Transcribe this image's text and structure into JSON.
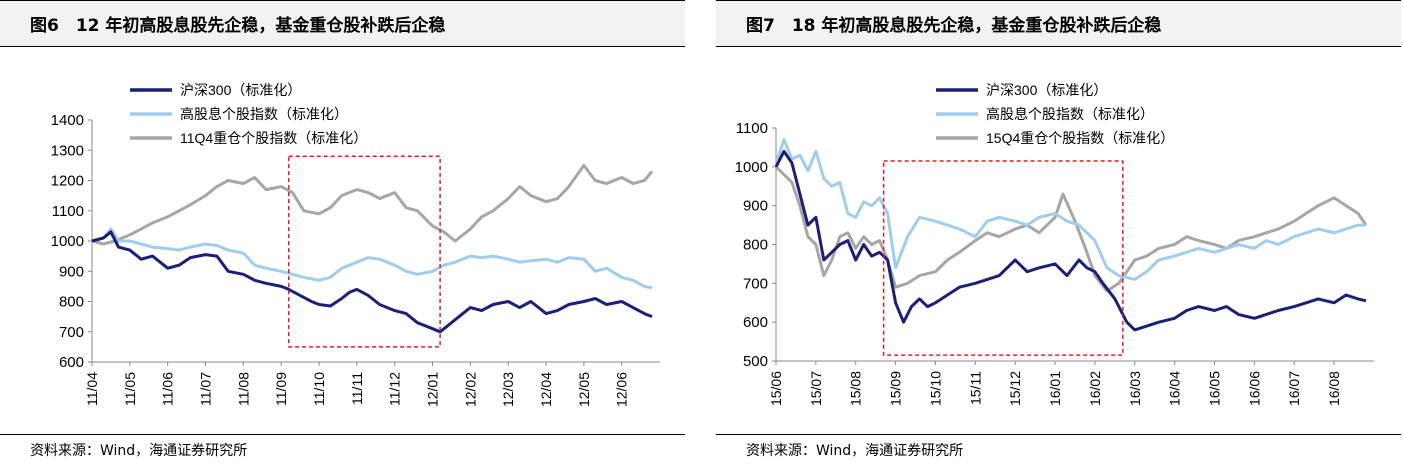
{
  "panels": [
    {
      "title": "图6　12 年初高股息股先企稳，基金重仓股补跌后企稳",
      "source": "资料来源：Wind，海通证券研究所",
      "chart_data": {
        "type": "line",
        "title": "图6　12 年初高股息股先企稳，基金重仓股补跌后企稳",
        "xlabel": "",
        "ylabel": "",
        "ylim": [
          600,
          1400
        ],
        "yticks": [
          600,
          700,
          800,
          900,
          1000,
          1100,
          1200,
          1300,
          1400
        ],
        "xticks": [
          "11/04",
          "11/05",
          "11/06",
          "11/07",
          "11/08",
          "11/09",
          "11/10",
          "11/11",
          "11/12",
          "12/01",
          "12/02",
          "12/03",
          "12/04",
          "12/05",
          "12/06"
        ],
        "xrange": [
          0,
          14.8
        ],
        "highlight": {
          "x0": 5.2,
          "x1": 9.2,
          "y0": 650,
          "y1": 1280
        },
        "series": [
          {
            "name": "沪深300（标准化）",
            "color": "#1a1f7a",
            "x": [
              0,
              0.3,
              0.5,
              0.7,
              1,
              1.3,
              1.6,
              2,
              2.3,
              2.6,
              3,
              3.3,
              3.6,
              4,
              4.3,
              4.6,
              5,
              5.2,
              5.5,
              5.8,
              6,
              6.3,
              6.6,
              6.8,
              7,
              7.3,
              7.6,
              8,
              8.3,
              8.6,
              8.8,
              9,
              9.2,
              9.5,
              9.8,
              10,
              10.3,
              10.6,
              11,
              11.3,
              11.6,
              12,
              12.3,
              12.6,
              13,
              13.3,
              13.6,
              14,
              14.3,
              14.6,
              14.8
            ],
            "values": [
              1000,
              1010,
              1030,
              980,
              970,
              940,
              950,
              910,
              920,
              945,
              955,
              950,
              900,
              890,
              870,
              860,
              850,
              840,
              820,
              800,
              790,
              785,
              810,
              830,
              840,
              820,
              790,
              770,
              760,
              730,
              720,
              710,
              700,
              730,
              760,
              780,
              770,
              790,
              800,
              780,
              800,
              760,
              770,
              790,
              800,
              810,
              790,
              800,
              780,
              760,
              750
            ]
          },
          {
            "name": "高股息个股指数（标准化）",
            "color": "#9fcdee",
            "x": [
              0,
              0.3,
              0.5,
              0.7,
              1,
              1.3,
              1.6,
              2,
              2.3,
              2.6,
              3,
              3.3,
              3.6,
              4,
              4.3,
              4.6,
              5,
              5.3,
              5.6,
              6,
              6.3,
              6.6,
              7,
              7.3,
              7.6,
              8,
              8.3,
              8.6,
              9,
              9.3,
              9.6,
              10,
              10.3,
              10.6,
              11,
              11.3,
              11.6,
              12,
              12.3,
              12.6,
              13,
              13.3,
              13.6,
              14,
              14.3,
              14.6,
              14.8
            ],
            "values": [
              1000,
              1010,
              1040,
              1000,
              1000,
              990,
              980,
              975,
              970,
              980,
              990,
              985,
              970,
              960,
              920,
              910,
              900,
              890,
              880,
              870,
              880,
              910,
              930,
              945,
              940,
              920,
              900,
              890,
              900,
              920,
              930,
              950,
              945,
              950,
              940,
              930,
              935,
              940,
              930,
              945,
              940,
              900,
              910,
              880,
              870,
              850,
              845
            ]
          },
          {
            "name": "11Q4重仓个股指数（标准化）",
            "color": "#a6a6a6",
            "x": [
              0,
              0.3,
              0.6,
              1,
              1.3,
              1.6,
              2,
              2.3,
              2.6,
              3,
              3.3,
              3.6,
              4,
              4.3,
              4.6,
              5,
              5.3,
              5.6,
              6,
              6.3,
              6.6,
              7,
              7.3,
              7.6,
              8,
              8.3,
              8.6,
              9,
              9.3,
              9.6,
              10,
              10.3,
              10.6,
              11,
              11.3,
              11.6,
              12,
              12.3,
              12.6,
              13,
              13.3,
              13.6,
              14,
              14.3,
              14.6,
              14.8
            ],
            "values": [
              1000,
              990,
              1000,
              1020,
              1040,
              1060,
              1080,
              1100,
              1120,
              1150,
              1180,
              1200,
              1190,
              1210,
              1170,
              1180,
              1160,
              1100,
              1090,
              1110,
              1150,
              1170,
              1160,
              1140,
              1160,
              1110,
              1100,
              1050,
              1030,
              1000,
              1040,
              1080,
              1100,
              1140,
              1180,
              1150,
              1130,
              1140,
              1180,
              1250,
              1200,
              1190,
              1210,
              1190,
              1200,
              1230
            ]
          }
        ],
        "legend": "top"
      }
    },
    {
      "title": "图7　18 年初高股息股先企稳，基金重仓股补跌后企稳",
      "source": "资料来源：Wind，海通证券研究所",
      "chart_data": {
        "type": "line",
        "title": "图7　18 年初高股息股先企稳，基金重仓股补跌后企稳",
        "xlabel": "",
        "ylabel": "",
        "ylim": [
          500,
          1100
        ],
        "yticks": [
          500,
          600,
          700,
          800,
          900,
          1000,
          1100
        ],
        "xticks": [
          "15/06",
          "15/07",
          "15/08",
          "15/09",
          "15/10",
          "15/11",
          "15/12",
          "16/01",
          "16/02",
          "16/03",
          "16/04",
          "16/05",
          "16/06",
          "16/07",
          "16/08"
        ],
        "xrange": [
          0,
          14.8
        ],
        "highlight": {
          "x0": 2.7,
          "x1": 8.7,
          "y0": 515,
          "y1": 1015
        },
        "series": [
          {
            "name": "沪深300（标准化）",
            "color": "#1a1f7a",
            "x": [
              0,
              0.2,
              0.4,
              0.6,
              0.8,
              1,
              1.2,
              1.4,
              1.6,
              1.8,
              2,
              2.2,
              2.4,
              2.6,
              2.8,
              3,
              3.2,
              3.4,
              3.6,
              3.8,
              4,
              4.3,
              4.6,
              5,
              5.3,
              5.6,
              6,
              6.3,
              6.6,
              7,
              7.3,
              7.6,
              7.8,
              8,
              8.2,
              8.5,
              8.8,
              9,
              9.3,
              9.6,
              10,
              10.3,
              10.6,
              11,
              11.3,
              11.6,
              12,
              12.3,
              12.6,
              13,
              13.3,
              13.6,
              14,
              14.3,
              14.6,
              14.8
            ],
            "values": [
              1000,
              1040,
              1010,
              930,
              850,
              870,
              760,
              780,
              800,
              810,
              760,
              800,
              770,
              780,
              760,
              650,
              600,
              640,
              660,
              640,
              650,
              670,
              690,
              700,
              710,
              720,
              760,
              730,
              740,
              750,
              720,
              760,
              740,
              730,
              700,
              660,
              600,
              580,
              590,
              600,
              610,
              630,
              640,
              630,
              640,
              620,
              610,
              620,
              630,
              640,
              650,
              660,
              650,
              670,
              660,
              655
            ]
          },
          {
            "name": "高股息个股指数（标准化）",
            "color": "#9fcdee",
            "x": [
              0,
              0.2,
              0.4,
              0.6,
              0.8,
              1,
              1.2,
              1.4,
              1.6,
              1.8,
              2,
              2.2,
              2.4,
              2.6,
              2.8,
              3,
              3.3,
              3.6,
              4,
              4.3,
              4.6,
              5,
              5.3,
              5.6,
              6,
              6.3,
              6.6,
              7,
              7.3,
              7.6,
              8,
              8.3,
              8.6,
              9,
              9.3,
              9.6,
              10,
              10.3,
              10.6,
              11,
              11.3,
              11.6,
              12,
              12.3,
              12.6,
              13,
              13.3,
              13.6,
              14,
              14.3,
              14.6,
              14.8
            ],
            "values": [
              1010,
              1070,
              1020,
              1030,
              990,
              1040,
              970,
              950,
              960,
              880,
              870,
              910,
              900,
              920,
              880,
              740,
              820,
              870,
              860,
              850,
              840,
              820,
              860,
              870,
              860,
              850,
              870,
              880,
              860,
              850,
              810,
              740,
              720,
              710,
              730,
              760,
              770,
              780,
              790,
              780,
              790,
              800,
              790,
              810,
              800,
              820,
              830,
              840,
              830,
              840,
              850,
              850
            ]
          },
          {
            "name": "15Q4重仓个股指数（标准化）",
            "color": "#a6a6a6",
            "x": [
              0,
              0.2,
              0.4,
              0.6,
              0.8,
              1,
              1.2,
              1.4,
              1.6,
              1.8,
              2,
              2.2,
              2.4,
              2.6,
              2.8,
              3,
              3.3,
              3.6,
              4,
              4.3,
              4.6,
              5,
              5.3,
              5.6,
              6,
              6.3,
              6.6,
              7,
              7.2,
              7.5,
              7.8,
              8,
              8.3,
              8.6,
              9,
              9.3,
              9.6,
              10,
              10.3,
              10.6,
              11,
              11.3,
              11.6,
              12,
              12.3,
              12.6,
              13,
              13.3,
              13.6,
              14,
              14.3,
              14.6,
              14.8
            ],
            "values": [
              1000,
              980,
              960,
              900,
              820,
              800,
              720,
              760,
              820,
              830,
              790,
              820,
              800,
              810,
              760,
              690,
              700,
              720,
              730,
              760,
              780,
              810,
              830,
              820,
              840,
              850,
              830,
              870,
              930,
              860,
              780,
              720,
              680,
              700,
              760,
              770,
              790,
              800,
              820,
              810,
              800,
              790,
              810,
              820,
              830,
              840,
              860,
              880,
              900,
              920,
              900,
              880,
              850
            ]
          }
        ],
        "legend": "top"
      }
    }
  ]
}
